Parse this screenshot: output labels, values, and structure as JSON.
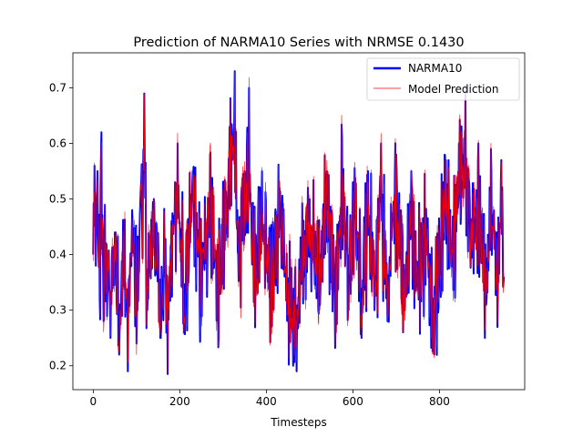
{
  "chart_data": {
    "type": "line",
    "title": "Prediction of NARMA10 Series with NRMSE 0.1430",
    "xlabel": "Timesteps",
    "ylabel": "",
    "xlim": [
      -47,
      997
    ],
    "ylim": [
      0.157,
      0.763
    ],
    "xticks": [
      0,
      200,
      400,
      600,
      800
    ],
    "xtick_labels": [
      "0",
      "200",
      "400",
      "600",
      "800"
    ],
    "yticks": [
      0.2,
      0.3,
      0.4,
      0.5,
      0.6,
      0.7
    ],
    "ytick_labels": [
      "0.2",
      "0.3",
      "0.4",
      "0.5",
      "0.6",
      "0.7"
    ],
    "legend_position": "top-right",
    "grid": false,
    "n_points": 950,
    "series": [
      {
        "name": "NARMA10",
        "color": "#0000ff",
        "key_points": [
          {
            "x": 0,
            "y": 0.4
          },
          {
            "x": 3,
            "y": 0.56
          },
          {
            "x": 6,
            "y": 0.38
          },
          {
            "x": 10,
            "y": 0.55
          },
          {
            "x": 15,
            "y": 0.32
          },
          {
            "x": 19,
            "y": 0.62
          },
          {
            "x": 24,
            "y": 0.28
          },
          {
            "x": 30,
            "y": 0.42
          },
          {
            "x": 40,
            "y": 0.25
          },
          {
            "x": 50,
            "y": 0.44
          },
          {
            "x": 60,
            "y": 0.22
          },
          {
            "x": 70,
            "y": 0.4
          },
          {
            "x": 80,
            "y": 0.19
          },
          {
            "x": 90,
            "y": 0.48
          },
          {
            "x": 100,
            "y": 0.24
          },
          {
            "x": 110,
            "y": 0.52
          },
          {
            "x": 118,
            "y": 0.69
          },
          {
            "x": 125,
            "y": 0.3
          },
          {
            "x": 140,
            "y": 0.5
          },
          {
            "x": 155,
            "y": 0.25
          },
          {
            "x": 165,
            "y": 0.4
          },
          {
            "x": 172,
            "y": 0.18
          },
          {
            "x": 180,
            "y": 0.42
          },
          {
            "x": 195,
            "y": 0.6
          },
          {
            "x": 210,
            "y": 0.26
          },
          {
            "x": 230,
            "y": 0.55
          },
          {
            "x": 250,
            "y": 0.3
          },
          {
            "x": 270,
            "y": 0.58
          },
          {
            "x": 290,
            "y": 0.25
          },
          {
            "x": 305,
            "y": 0.5
          },
          {
            "x": 315,
            "y": 0.63
          },
          {
            "x": 327,
            "y": 0.73
          },
          {
            "x": 335,
            "y": 0.4
          },
          {
            "x": 350,
            "y": 0.55
          },
          {
            "x": 360,
            "y": 0.7
          },
          {
            "x": 375,
            "y": 0.35
          },
          {
            "x": 390,
            "y": 0.55
          },
          {
            "x": 410,
            "y": 0.3
          },
          {
            "x": 430,
            "y": 0.52
          },
          {
            "x": 450,
            "y": 0.28
          },
          {
            "x": 462,
            "y": 0.2
          },
          {
            "x": 470,
            "y": 0.19
          },
          {
            "x": 480,
            "y": 0.38
          },
          {
            "x": 500,
            "y": 0.5
          },
          {
            "x": 520,
            "y": 0.3
          },
          {
            "x": 540,
            "y": 0.55
          },
          {
            "x": 560,
            "y": 0.28
          },
          {
            "x": 575,
            "y": 0.61
          },
          {
            "x": 590,
            "y": 0.3
          },
          {
            "x": 605,
            "y": 0.52
          },
          {
            "x": 620,
            "y": 0.25
          },
          {
            "x": 635,
            "y": 0.55
          },
          {
            "x": 650,
            "y": 0.3
          },
          {
            "x": 665,
            "y": 0.6
          },
          {
            "x": 680,
            "y": 0.28
          },
          {
            "x": 700,
            "y": 0.58
          },
          {
            "x": 720,
            "y": 0.3
          },
          {
            "x": 735,
            "y": 0.55
          },
          {
            "x": 750,
            "y": 0.35
          },
          {
            "x": 770,
            "y": 0.45
          },
          {
            "x": 788,
            "y": 0.22
          },
          {
            "x": 800,
            "y": 0.4
          },
          {
            "x": 815,
            "y": 0.57
          },
          {
            "x": 830,
            "y": 0.4
          },
          {
            "x": 845,
            "y": 0.6
          },
          {
            "x": 860,
            "y": 0.7
          },
          {
            "x": 875,
            "y": 0.45
          },
          {
            "x": 890,
            "y": 0.6
          },
          {
            "x": 905,
            "y": 0.25
          },
          {
            "x": 920,
            "y": 0.55
          },
          {
            "x": 935,
            "y": 0.33
          },
          {
            "x": 943,
            "y": 0.57
          },
          {
            "x": 949,
            "y": 0.36
          }
        ]
      },
      {
        "name": "Model Prediction",
        "color": "#ff0000",
        "noise": 0.02
      }
    ]
  }
}
